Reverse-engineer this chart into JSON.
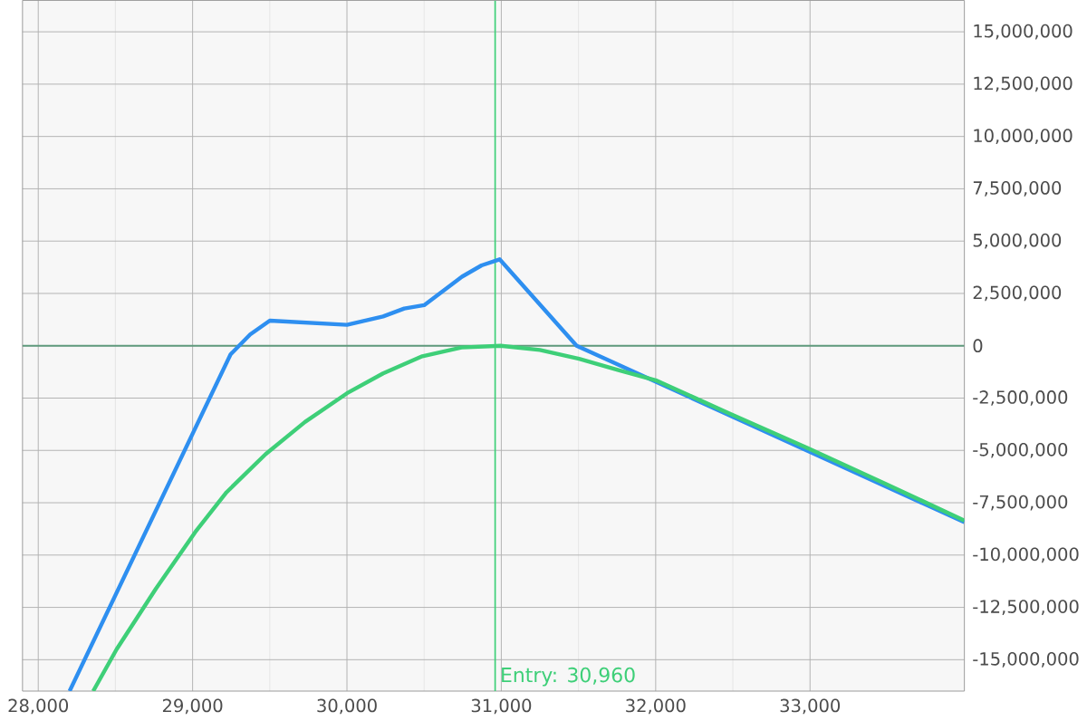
{
  "chart_data": {
    "type": "line",
    "series": [
      {
        "color": "#2e8ff0",
        "x": [
          28203,
          29246,
          29373,
          29500,
          30000,
          30234,
          30371,
          30500,
          30745,
          30872,
          30989,
          31488,
          34000
        ],
        "values": [
          -16500000,
          -410000,
          540000,
          1200000,
          1000000,
          1400000,
          1780000,
          1940000,
          3300000,
          3840000,
          4130000,
          0,
          -8430000
        ]
      },
      {
        "color": "#3ecf78",
        "x": [
          28356,
          28508,
          28763,
          29017,
          29220,
          29474,
          29728,
          30000,
          30234,
          30488,
          30742,
          30996,
          31250,
          31504,
          31759,
          32000,
          32474,
          32982,
          33490,
          34000
        ],
        "values": [
          -16500000,
          -14500000,
          -11600000,
          -8900000,
          -7000000,
          -5170000,
          -3640000,
          -2270000,
          -1320000,
          -500000,
          -80000,
          0,
          -200000,
          -620000,
          -1160000,
          -1650000,
          -3220000,
          -4880000,
          -6600000,
          -8350000
        ]
      }
    ],
    "xlim": [
      27898,
      34000
    ],
    "ylim": [
      -16500000,
      16500000
    ],
    "xticks": [
      {
        "value": 28000,
        "label": "28,000"
      },
      {
        "value": 29000,
        "label": "29,000"
      },
      {
        "value": 30000,
        "label": "30,000"
      },
      {
        "value": 31000,
        "label": "31,000"
      },
      {
        "value": 32000,
        "label": "32,000"
      },
      {
        "value": 33000,
        "label": "33,000"
      }
    ],
    "yticks": [
      {
        "value": -15000000,
        "label": "-15,000,000"
      },
      {
        "value": -12500000,
        "label": "-12,500,000"
      },
      {
        "value": -10000000,
        "label": "-10,000,000"
      },
      {
        "value": -7500000,
        "label": "-7,500,000"
      },
      {
        "value": -5000000,
        "label": "-5,000,000"
      },
      {
        "value": -2500000,
        "label": "-2,500,000"
      },
      {
        "value": 0,
        "label": "0"
      },
      {
        "value": 2500000,
        "label": "2,500,000"
      },
      {
        "value": 5000000,
        "label": "5,000,000"
      },
      {
        "value": 7500000,
        "label": "7,500,000"
      },
      {
        "value": 10000000,
        "label": "10,000,000"
      },
      {
        "value": 12500000,
        "label": "12,500,000"
      },
      {
        "value": 15000000,
        "label": "15,000,000"
      }
    ],
    "grid": true,
    "ref_lines": [
      {
        "axis": "y",
        "value": 0,
        "color": "#5f9a7c"
      },
      {
        "axis": "x",
        "value": 30960,
        "label": "Entry: 30,960",
        "color": "#3ecf78"
      }
    ]
  }
}
